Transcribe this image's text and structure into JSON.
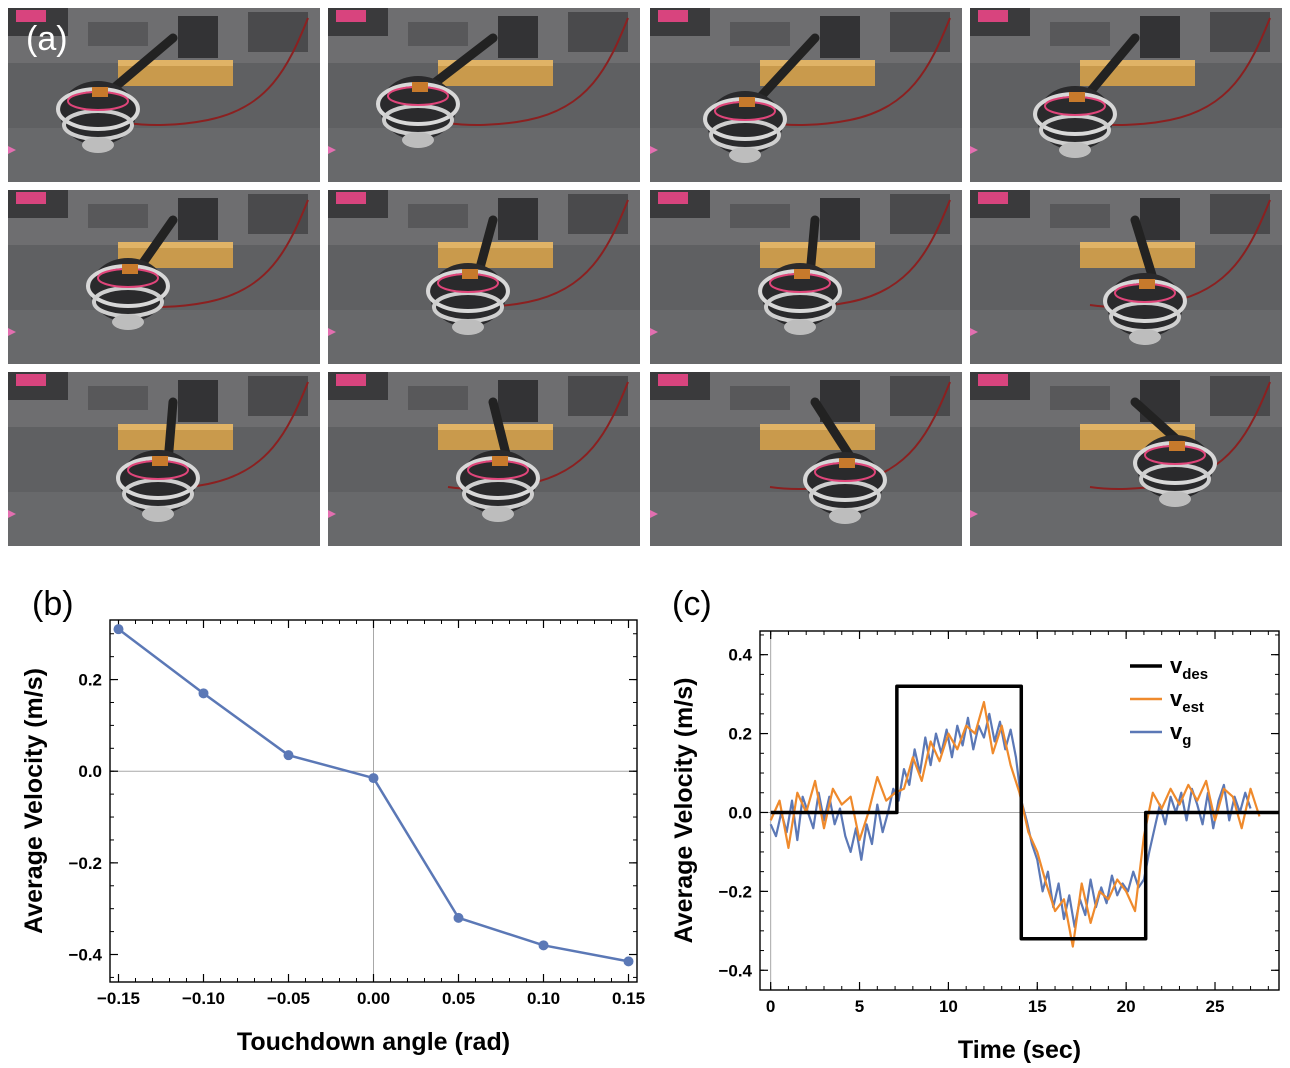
{
  "panels": {
    "a": "(a)",
    "b": "(b)",
    "c": "(c)"
  },
  "photo_grid": {
    "rows": 3,
    "cols": 4,
    "description_count": 12
  },
  "colors": {
    "blue": "#5b78b6",
    "orange": "#ef8a2c",
    "black": "#000000",
    "axis_zero": "#a8a8a8"
  },
  "chart_data": [
    {
      "type": "line",
      "xlabel": "Touchdown angle (rad)",
      "ylabel": "Average Velocity (m/s)",
      "xlim": [
        -0.155,
        0.155
      ],
      "ylim": [
        -0.46,
        0.33
      ],
      "xticks": [
        -0.15,
        -0.1,
        -0.05,
        0.0,
        0.05,
        0.1,
        0.15
      ],
      "xtick_labels": [
        "−0.15",
        "−0.10",
        "−0.05",
        "0.00",
        "0.05",
        "0.10",
        "0.15"
      ],
      "yticks": [
        -0.4,
        -0.2,
        0.0,
        0.2
      ],
      "ytick_labels": [
        "−0.4",
        "−0.2",
        "0.0",
        "0.2"
      ],
      "series": [
        {
          "x": [
            -0.15,
            -0.1,
            -0.05,
            0.0,
            0.05,
            0.1,
            0.15
          ],
          "y": [
            0.31,
            0.17,
            0.035,
            -0.015,
            -0.32,
            -0.38,
            -0.415
          ],
          "markers": true
        }
      ],
      "grid": false
    },
    {
      "type": "line",
      "xlabel": "Time (sec)",
      "ylabel": "Average Velocity (m/s)",
      "xlim": [
        -0.6,
        28.6
      ],
      "ylim": [
        -0.45,
        0.46
      ],
      "xticks": [
        0,
        5,
        10,
        15,
        20,
        25
      ],
      "xtick_labels": [
        "0",
        "5",
        "10",
        "15",
        "20",
        "25"
      ],
      "yticks": [
        -0.4,
        -0.2,
        0.0,
        0.2,
        0.4
      ],
      "ytick_labels": [
        "−0.4",
        "−0.2",
        "0.0",
        "0.2",
        "0.4"
      ],
      "legend_position": "top-right",
      "legend": [
        {
          "main": "v",
          "sub": "des"
        },
        {
          "main": "v",
          "sub": "est"
        },
        {
          "main": "v",
          "sub": "g"
        }
      ],
      "series": [
        {
          "name": "vdes",
          "step": true,
          "x": [
            0,
            7.1,
            7.1,
            14.1,
            14.1,
            21.1,
            21.1,
            28.6
          ],
          "y": [
            0,
            0,
            0.32,
            0.32,
            -0.32,
            -0.32,
            0,
            0
          ]
        },
        {
          "name": "vest",
          "x": [
            0,
            0.5,
            1.0,
            1.5,
            2.0,
            2.5,
            3.0,
            3.5,
            4.0,
            4.5,
            5.0,
            5.5,
            6.0,
            6.5,
            7.0,
            7.5,
            8.0,
            8.5,
            9.0,
            9.5,
            10.0,
            10.5,
            11.0,
            11.5,
            12.0,
            12.5,
            13.0,
            13.5,
            14.0,
            14.5,
            15.0,
            15.5,
            16.0,
            16.5,
            17.0,
            17.5,
            18.0,
            18.5,
            19.0,
            19.5,
            20.0,
            20.5,
            21.0,
            21.5,
            22.0,
            22.5,
            23.0,
            23.5,
            24.0,
            24.5,
            25.0,
            25.5,
            26.0,
            26.5,
            27.0,
            27.5
          ],
          "y": [
            -0.02,
            0.03,
            -0.09,
            0.05,
            0.0,
            0.08,
            -0.04,
            0.06,
            0.02,
            0.04,
            -0.07,
            0.0,
            0.09,
            0.03,
            0.05,
            0.06,
            0.14,
            0.08,
            0.18,
            0.13,
            0.2,
            0.16,
            0.22,
            0.2,
            0.28,
            0.15,
            0.22,
            0.12,
            0.05,
            -0.05,
            -0.1,
            -0.18,
            -0.25,
            -0.22,
            -0.34,
            -0.18,
            -0.28,
            -0.2,
            -0.22,
            -0.17,
            -0.2,
            -0.25,
            -0.06,
            0.05,
            0.01,
            0.06,
            0.02,
            0.07,
            0.03,
            0.08,
            -0.02,
            0.06,
            0.04,
            -0.04,
            0.06,
            -0.01
          ]
        },
        {
          "name": "vg",
          "x": [
            0,
            0.3,
            0.6,
            0.9,
            1.2,
            1.5,
            1.8,
            2.1,
            2.4,
            2.7,
            3.0,
            3.3,
            3.6,
            3.9,
            4.2,
            4.5,
            4.8,
            5.1,
            5.4,
            5.7,
            6.0,
            6.3,
            6.6,
            6.9,
            7.2,
            7.5,
            7.8,
            8.1,
            8.4,
            8.7,
            9.0,
            9.3,
            9.6,
            9.9,
            10.2,
            10.5,
            10.8,
            11.1,
            11.4,
            11.7,
            12.0,
            12.3,
            12.6,
            12.9,
            13.2,
            13.5,
            13.8,
            14.1,
            14.4,
            14.7,
            15.0,
            15.3,
            15.6,
            15.9,
            16.2,
            16.5,
            16.8,
            17.1,
            17.4,
            17.7,
            18.0,
            18.3,
            18.6,
            18.9,
            19.2,
            19.5,
            19.8,
            20.1,
            20.4,
            20.7,
            21.0,
            21.3,
            21.6,
            21.9,
            22.2,
            22.5,
            22.8,
            23.1,
            23.4,
            23.7,
            24.0,
            24.3,
            24.6,
            24.9,
            25.2,
            25.5,
            25.8,
            26.1,
            26.4,
            26.7,
            27.0
          ],
          "y": [
            -0.03,
            -0.06,
            0.0,
            -0.05,
            0.03,
            -0.07,
            0.04,
            0.0,
            -0.04,
            0.05,
            -0.02,
            0.04,
            -0.03,
            0.01,
            -0.06,
            -0.1,
            -0.04,
            -0.12,
            -0.03,
            -0.08,
            0.02,
            -0.05,
            0.0,
            0.06,
            0.03,
            0.11,
            0.07,
            0.16,
            0.1,
            0.19,
            0.12,
            0.2,
            0.15,
            0.21,
            0.14,
            0.22,
            0.17,
            0.24,
            0.16,
            0.22,
            0.19,
            0.25,
            0.18,
            0.23,
            0.16,
            0.21,
            0.14,
            0.03,
            -0.02,
            -0.08,
            -0.12,
            -0.2,
            -0.15,
            -0.24,
            -0.18,
            -0.27,
            -0.21,
            -0.29,
            -0.22,
            -0.26,
            -0.17,
            -0.24,
            -0.19,
            -0.23,
            -0.16,
            -0.21,
            -0.18,
            -0.2,
            -0.15,
            -0.19,
            -0.17,
            -0.1,
            -0.04,
            0.02,
            -0.03,
            0.04,
            0.0,
            0.05,
            -0.02,
            0.06,
            0.02,
            -0.03,
            0.05,
            -0.04,
            0.03,
            0.07,
            -0.02,
            0.04,
            0.0,
            0.05,
            0.01
          ]
        }
      ],
      "grid": false
    }
  ]
}
